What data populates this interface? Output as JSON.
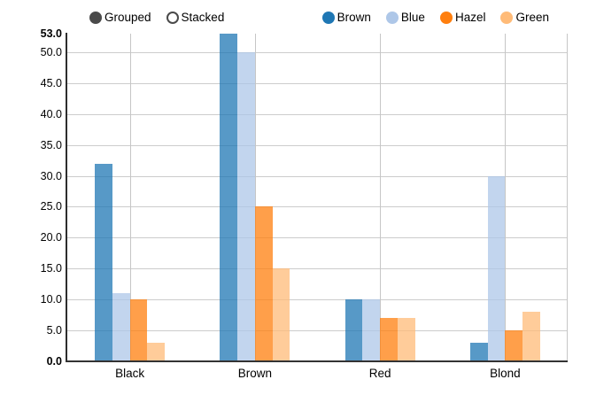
{
  "controls": {
    "grouped_label": "Grouped",
    "stacked_label": "Stacked",
    "selected": "Grouped"
  },
  "legend": {
    "position": "top-right",
    "items": [
      {
        "label": "Brown",
        "color": "#1f77b4"
      },
      {
        "label": "Blue",
        "color": "#aec7e8"
      },
      {
        "label": "Hazel",
        "color": "#ff7f0e"
      },
      {
        "label": "Green",
        "color": "#ffbb78"
      }
    ]
  },
  "chart_data": {
    "type": "bar",
    "mode": "grouped",
    "title": "",
    "xlabel": "",
    "ylabel": "",
    "categories": [
      "Black",
      "Brown",
      "Red",
      "Blond"
    ],
    "series": [
      {
        "name": "Brown",
        "color": "#1f77b4",
        "values": [
          32,
          53,
          10,
          3
        ]
      },
      {
        "name": "Blue",
        "color": "#aec7e8",
        "values": [
          11,
          50,
          10,
          30
        ]
      },
      {
        "name": "Hazel",
        "color": "#ff7f0e",
        "values": [
          10,
          25,
          7,
          5
        ]
      },
      {
        "name": "Green",
        "color": "#ffbb78",
        "values": [
          3,
          15,
          7,
          8
        ]
      }
    ],
    "ylim": [
      0,
      53
    ],
    "y_ticks": [
      0,
      5,
      10,
      15,
      20,
      25,
      30,
      35,
      40,
      45,
      50,
      53
    ],
    "y_tick_decimals": 1,
    "bold_y_ticks": [
      0,
      53
    ],
    "grid": true,
    "bar_opacity": 0.75,
    "legend_position": "top-right"
  },
  "style_colors": {
    "axis": "#2d2d2d",
    "grid": "#cccccc",
    "radio": "#4a4a4a",
    "background": "#ffffff"
  }
}
